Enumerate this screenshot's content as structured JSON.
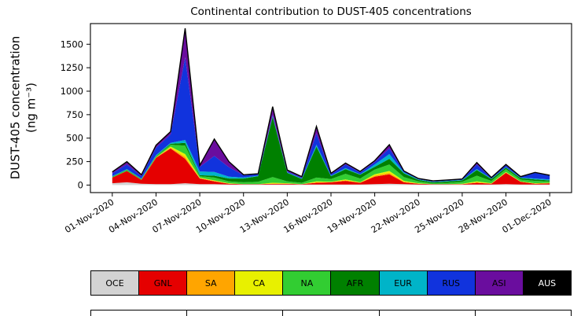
{
  "title": "Continental contribution to DUST-405 concentrations",
  "ylabel_line1": "DUST-405 concentration",
  "ylabel_line2": "(ng m⁻³)",
  "chart_data": {
    "type": "area",
    "stacked": true,
    "grid": false,
    "background": "#ffffff",
    "legend_position": "bottom",
    "xlim": [
      -1.5,
      31.5
    ],
    "ylim": [
      -80,
      1720
    ],
    "yticks": [
      0,
      250,
      500,
      750,
      1000,
      1250,
      1500
    ],
    "x_tick_positions": [
      0,
      3,
      6,
      9,
      12,
      15,
      18,
      21,
      24,
      27,
      30
    ],
    "x_tick_labels": [
      "01-Nov-2020",
      "04-Nov-2020",
      "07-Nov-2020",
      "10-Nov-2020",
      "13-Nov-2020",
      "16-Nov-2020",
      "19-Nov-2020",
      "22-Nov-2020",
      "25-Nov-2020",
      "28-Nov-2020",
      "01-Dec-2020"
    ],
    "dates": [
      "01-Nov-2020",
      "02-Nov-2020",
      "03-Nov-2020",
      "04-Nov-2020",
      "05-Nov-2020",
      "06-Nov-2020",
      "07-Nov-2020",
      "08-Nov-2020",
      "09-Nov-2020",
      "10-Nov-2020",
      "11-Nov-2020",
      "12-Nov-2020",
      "13-Nov-2020",
      "14-Nov-2020",
      "15-Nov-2020",
      "16-Nov-2020",
      "17-Nov-2020",
      "18-Nov-2020",
      "19-Nov-2020",
      "20-Nov-2020",
      "21-Nov-2020",
      "22-Nov-2020",
      "23-Nov-2020",
      "24-Nov-2020",
      "25-Nov-2020",
      "26-Nov-2020",
      "27-Nov-2020",
      "28-Nov-2020",
      "29-Nov-2020",
      "30-Nov-2020",
      "01-Dec-2020"
    ],
    "series": [
      {
        "name": "OCE",
        "color": "#d3d3d3",
        "values": [
          20,
          30,
          15,
          10,
          10,
          20,
          10,
          10,
          5,
          5,
          5,
          5,
          5,
          5,
          5,
          5,
          5,
          5,
          10,
          15,
          10,
          5,
          5,
          5,
          5,
          5,
          5,
          10,
          5,
          5,
          5
        ]
      },
      {
        "name": "GNL",
        "color": "#e50000",
        "values": [
          60,
          120,
          40,
          280,
          380,
          260,
          60,
          30,
          10,
          5,
          5,
          10,
          10,
          5,
          20,
          25,
          40,
          20,
          80,
          100,
          20,
          10,
          5,
          5,
          5,
          20,
          10,
          120,
          30,
          10,
          15
        ]
      },
      {
        "name": "SA",
        "color": "#ffa500",
        "values": [
          0,
          0,
          0,
          5,
          10,
          20,
          5,
          5,
          0,
          0,
          0,
          0,
          0,
          0,
          5,
          0,
          5,
          0,
          10,
          15,
          5,
          0,
          0,
          0,
          0,
          5,
          0,
          5,
          0,
          0,
          0
        ]
      },
      {
        "name": "CA",
        "color": "#e8f000",
        "values": [
          0,
          0,
          0,
          0,
          10,
          30,
          5,
          5,
          5,
          0,
          0,
          10,
          5,
          0,
          10,
          5,
          10,
          5,
          15,
          20,
          10,
          5,
          0,
          0,
          5,
          10,
          5,
          5,
          5,
          5,
          5
        ]
      },
      {
        "name": "NA",
        "color": "#32cd32",
        "values": [
          5,
          10,
          5,
          10,
          20,
          90,
          15,
          30,
          20,
          20,
          25,
          60,
          20,
          15,
          40,
          30,
          60,
          40,
          50,
          70,
          40,
          20,
          10,
          15,
          20,
          60,
          25,
          30,
          20,
          25,
          15
        ]
      },
      {
        "name": "AFR",
        "color": "#008000",
        "values": [
          5,
          5,
          5,
          5,
          10,
          30,
          10,
          20,
          30,
          40,
          60,
          640,
          90,
          40,
          330,
          30,
          50,
          40,
          30,
          60,
          40,
          15,
          10,
          15,
          15,
          60,
          20,
          15,
          15,
          15,
          10
        ]
      },
      {
        "name": "EUR",
        "color": "#00b4c8",
        "values": [
          5,
          5,
          5,
          10,
          10,
          30,
          40,
          40,
          20,
          10,
          5,
          10,
          5,
          5,
          20,
          5,
          10,
          5,
          25,
          50,
          10,
          5,
          5,
          5,
          5,
          10,
          5,
          5,
          5,
          10,
          10
        ]
      },
      {
        "name": "RUS",
        "color": "#1133dd",
        "values": [
          30,
          50,
          25,
          80,
          90,
          880,
          50,
          170,
          100,
          25,
          15,
          15,
          10,
          10,
          120,
          15,
          40,
          20,
          25,
          60,
          10,
          5,
          5,
          5,
          5,
          50,
          5,
          20,
          5,
          60,
          40
        ]
      },
      {
        "name": "ASI",
        "color": "#6a0d9e",
        "values": [
          10,
          20,
          10,
          20,
          25,
          290,
          10,
          170,
          55,
          5,
          5,
          80,
          10,
          5,
          70,
          10,
          10,
          5,
          10,
          35,
          5,
          5,
          5,
          5,
          5,
          15,
          5,
          5,
          5,
          5,
          5
        ]
      },
      {
        "name": "AUS",
        "color": "#000000",
        "text_color": "#ffffff",
        "values": [
          5,
          10,
          5,
          5,
          5,
          20,
          5,
          10,
          5,
          0,
          0,
          5,
          5,
          5,
          5,
          0,
          5,
          5,
          5,
          5,
          0,
          0,
          0,
          0,
          0,
          5,
          0,
          5,
          0,
          0,
          0
        ]
      }
    ]
  }
}
